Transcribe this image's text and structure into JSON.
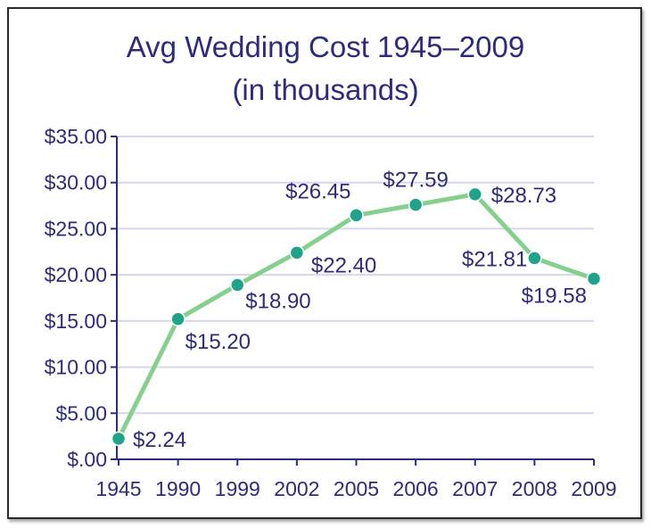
{
  "chart_data": {
    "type": "line",
    "title": "Avg Wedding Cost 1945–2009",
    "subtitle": "(in thousands)",
    "categories": [
      "1945",
      "1990",
      "1999",
      "2002",
      "2005",
      "2006",
      "2007",
      "2008",
      "2009"
    ],
    "values": [
      2.24,
      15.2,
      18.9,
      22.4,
      26.45,
      27.59,
      28.73,
      21.81,
      19.58
    ],
    "data_labels": [
      "$2.24",
      "$15.20",
      "$18.90",
      "$22.40",
      "$26.45",
      "$27.59",
      "$28.73",
      "$21.81",
      "$19.58"
    ],
    "y_tick_labels": [
      "$.00",
      "$5.00",
      "$10.00",
      "$15.00",
      "$20.00",
      "$25.00",
      "$30.00",
      "$35.00"
    ],
    "y_ticks": [
      0,
      5,
      10,
      15,
      20,
      25,
      30,
      35
    ],
    "ylim": [
      0,
      35
    ],
    "grid": true,
    "colors": {
      "line": "#86d08e",
      "marker": "#1fa38a",
      "text": "#2e2b7a",
      "grid": "#d6d6ec",
      "axis": "#2e2b7a"
    }
  }
}
